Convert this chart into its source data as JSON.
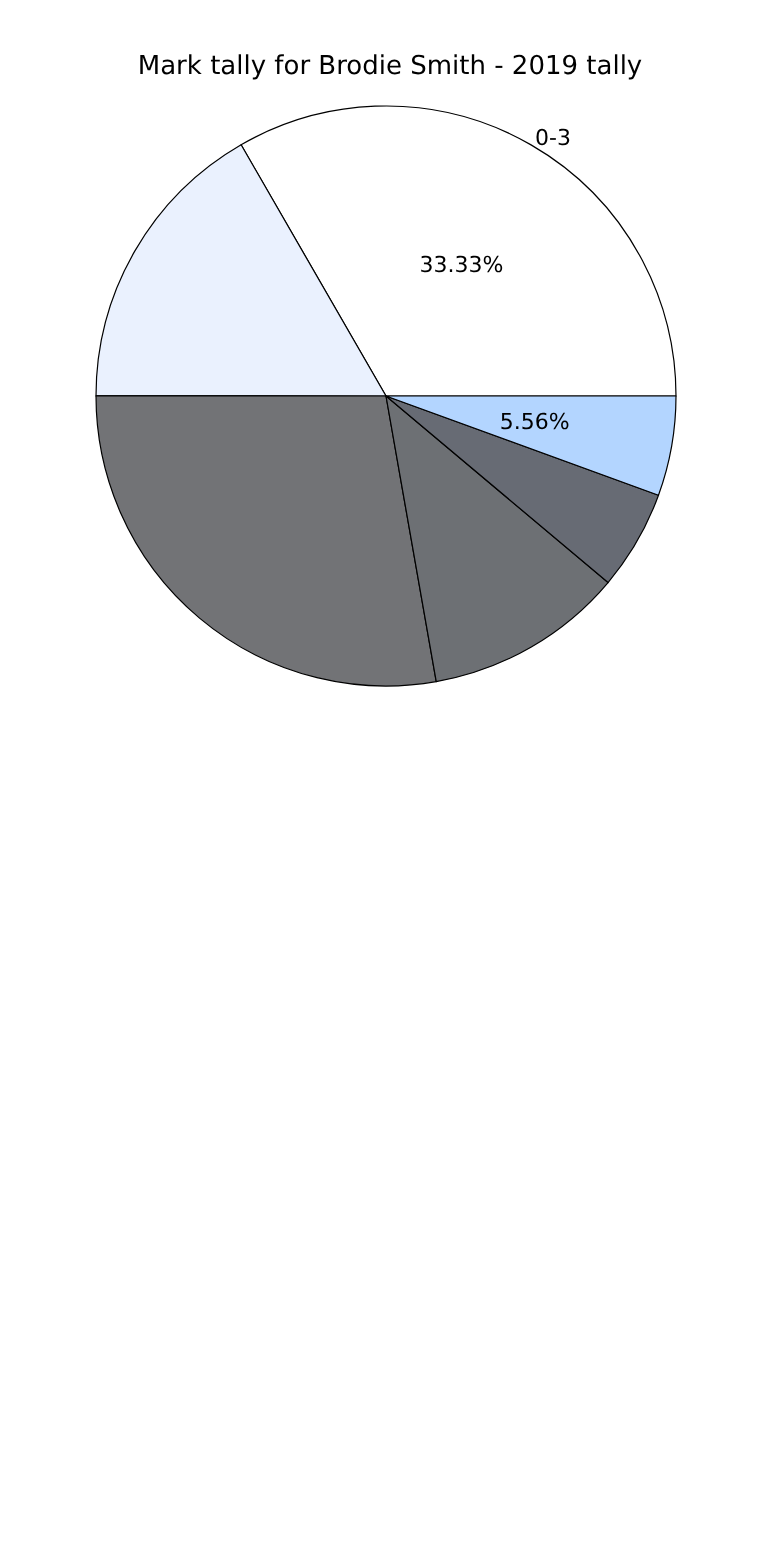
{
  "chart_data": {
    "type": "pie",
    "title": "Mark tally for Brodie Smith - 2019 tally",
    "categories": [
      "0-3",
      null,
      null,
      null,
      null,
      null
    ],
    "values": [
      33.33,
      16.67,
      27.78,
      11.11,
      5.56,
      5.56
    ],
    "colors": [
      "#ffffff",
      "#eaf1fe",
      "#727376",
      "#6d7074",
      "#676b74",
      "#b3d5ff"
    ],
    "value_labels": [
      "33.33%",
      null,
      null,
      null,
      null,
      "5.56%"
    ],
    "legend": false
  }
}
